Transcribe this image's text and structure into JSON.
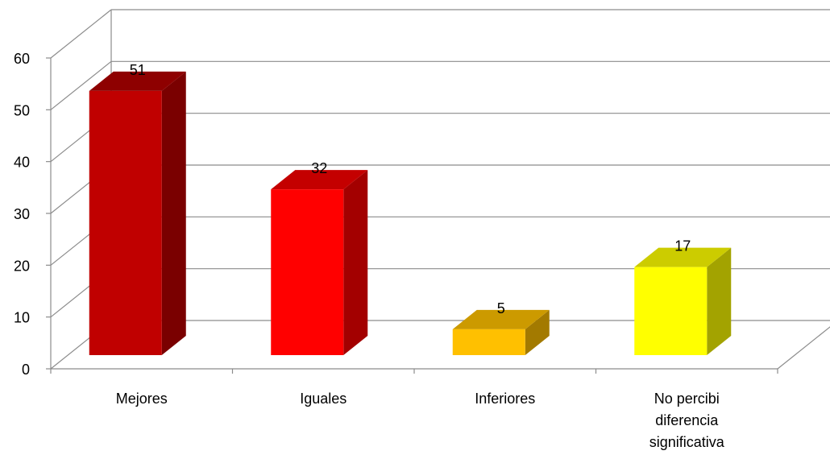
{
  "chart_data": {
    "type": "bar",
    "style": "3d-column",
    "categories": [
      "Mejores",
      "Iguales",
      "Inferiores",
      "No percibi diferencia significativa"
    ],
    "category_lines": [
      [
        "Mejores"
      ],
      [
        "Iguales"
      ],
      [
        "Inferiores"
      ],
      [
        "No percibi",
        "diferencia",
        "significativa"
      ]
    ],
    "values": [
      51,
      32,
      5,
      17
    ],
    "value_labels": [
      "51",
      "32",
      "5",
      "17"
    ],
    "ylim": [
      0,
      60
    ],
    "yticks": [
      "0",
      "10",
      "20",
      "30",
      "40",
      "50",
      "60"
    ],
    "grid": true,
    "legend": "none",
    "colors": {
      "front": [
        "#C00000",
        "#FF0000",
        "#FFC000",
        "#FFFF00"
      ],
      "side": [
        "#7A0000",
        "#A30000",
        "#A37A00",
        "#A3A300"
      ],
      "top": [
        "#8E0000",
        "#C40000",
        "#CC9A00",
        "#CCCC00"
      ],
      "grid": "#8C8C8C"
    }
  }
}
